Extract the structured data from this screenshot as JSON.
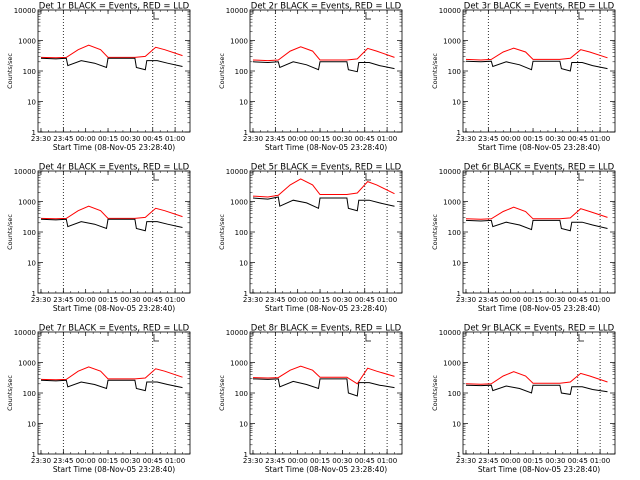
{
  "chart_data": [
    {
      "type": "line",
      "title": "Det 1r BLACK = Events, RED = LLD",
      "xlabel": "Start Time (08-Nov-05 23:28:40)",
      "ylabel": "Counts/sec",
      "x_ticks": [
        "23:30",
        "23:45",
        "00:00",
        "00:15",
        "00:30",
        "00:45",
        "01:00"
      ],
      "x_dotted_lines": [
        "23:45",
        "00:45",
        "01:00"
      ],
      "y_scale": "log",
      "ylim": [
        1,
        10000
      ],
      "y_ticks": [
        "1",
        "10",
        "100",
        "1000",
        "10000"
      ],
      "series": [
        {
          "color": "#ff0000",
          "x": [
            "23:30",
            "23:40",
            "23:47",
            "23:55",
            "00:02",
            "00:10",
            "00:15",
            "00:23",
            "00:33",
            "00:40",
            "00:47",
            "00:53",
            "01:05"
          ],
          "values": [
            280,
            270,
            280,
            500,
            700,
            500,
            280,
            280,
            280,
            300,
            600,
            500,
            320
          ]
        },
        {
          "color": "#000000",
          "x": [
            "23:30",
            "23:40",
            "23:47",
            "23:48",
            "23:57",
            "00:06",
            "00:14",
            "00:15",
            "00:33",
            "00:34",
            "00:40",
            "00:41",
            "00:48",
            "00:55",
            "01:05"
          ],
          "values": [
            260,
            250,
            260,
            150,
            220,
            180,
            130,
            260,
            260,
            130,
            110,
            220,
            220,
            180,
            140
          ]
        }
      ]
    },
    {
      "type": "line",
      "title": "Det 2r BLACK = Events, RED = LLD",
      "xlabel": "Start Time (08-Nov-05 23:28:40)",
      "ylabel": "Counts/sec",
      "x_ticks": [
        "23:30",
        "23:45",
        "00:00",
        "00:15",
        "00:30",
        "00:45",
        "01:00"
      ],
      "x_dotted_lines": [
        "23:45",
        "00:45",
        "01:00"
      ],
      "y_scale": "log",
      "ylim": [
        1,
        10000
      ],
      "y_ticks": [
        "1",
        "10",
        "100",
        "1000",
        "10000"
      ],
      "series": [
        {
          "color": "#ff0000",
          "x": [
            "23:30",
            "23:40",
            "23:47",
            "23:55",
            "00:02",
            "00:10",
            "00:15",
            "00:23",
            "00:33",
            "00:40",
            "00:47",
            "00:53",
            "01:05"
          ],
          "values": [
            230,
            220,
            230,
            450,
            620,
            450,
            230,
            230,
            230,
            250,
            550,
            450,
            280
          ]
        },
        {
          "color": "#000000",
          "x": [
            "23:30",
            "23:40",
            "23:47",
            "23:48",
            "23:57",
            "00:06",
            "00:14",
            "00:15",
            "00:33",
            "00:34",
            "00:40",
            "00:41",
            "00:48",
            "00:55",
            "01:05"
          ],
          "values": [
            200,
            190,
            200,
            130,
            200,
            160,
            110,
            200,
            200,
            110,
            95,
            190,
            190,
            150,
            120
          ]
        }
      ]
    },
    {
      "type": "line",
      "title": "Det 3r BLACK = Events, RED = LLD",
      "xlabel": "Start Time (08-Nov-05 23:28:40)",
      "ylabel": "Counts/sec",
      "x_ticks": [
        "23:30",
        "23:45",
        "00:00",
        "00:15",
        "00:30",
        "00:45",
        "01:00"
      ],
      "x_dotted_lines": [
        "23:45",
        "00:45",
        "01:00"
      ],
      "y_scale": "log",
      "ylim": [
        1,
        10000
      ],
      "y_ticks": [
        "1",
        "10",
        "100",
        "1000",
        "10000"
      ],
      "series": [
        {
          "color": "#ff0000",
          "x": [
            "23:30",
            "23:40",
            "23:47",
            "23:55",
            "00:02",
            "00:10",
            "00:15",
            "00:23",
            "00:33",
            "00:40",
            "00:47",
            "00:53",
            "01:05"
          ],
          "values": [
            240,
            230,
            240,
            420,
            560,
            420,
            240,
            240,
            240,
            260,
            500,
            420,
            270
          ]
        },
        {
          "color": "#000000",
          "x": [
            "23:30",
            "23:40",
            "23:47",
            "23:48",
            "23:57",
            "00:06",
            "00:14",
            "00:15",
            "00:33",
            "00:34",
            "00:40",
            "00:41",
            "00:48",
            "00:55",
            "01:05"
          ],
          "values": [
            210,
            200,
            210,
            140,
            200,
            160,
            110,
            210,
            210,
            120,
            100,
            190,
            190,
            150,
            120
          ]
        }
      ]
    },
    {
      "type": "line",
      "title": "Det 4r BLACK = Events, RED = LLD",
      "xlabel": "Start Time (08-Nov-05 23:28:40)",
      "ylabel": "Counts/sec",
      "x_ticks": [
        "23:30",
        "23:45",
        "00:00",
        "00:15",
        "00:30",
        "00:45",
        "01:00"
      ],
      "x_dotted_lines": [
        "23:45",
        "00:45",
        "01:00"
      ],
      "y_scale": "log",
      "ylim": [
        1,
        10000
      ],
      "y_ticks": [
        "1",
        "10",
        "100",
        "1000",
        "10000"
      ],
      "series": [
        {
          "color": "#ff0000",
          "x": [
            "23:30",
            "23:40",
            "23:47",
            "23:55",
            "00:02",
            "00:10",
            "00:15",
            "00:23",
            "00:33",
            "00:40",
            "00:47",
            "00:53",
            "01:05"
          ],
          "values": [
            280,
            270,
            280,
            500,
            700,
            500,
            280,
            280,
            280,
            300,
            600,
            500,
            320
          ]
        },
        {
          "color": "#000000",
          "x": [
            "23:30",
            "23:40",
            "23:47",
            "23:48",
            "23:57",
            "00:06",
            "00:14",
            "00:15",
            "00:33",
            "00:34",
            "00:40",
            "00:41",
            "00:48",
            "00:55",
            "01:05"
          ],
          "values": [
            260,
            250,
            260,
            150,
            220,
            180,
            130,
            260,
            260,
            130,
            110,
            220,
            220,
            180,
            140
          ]
        }
      ]
    },
    {
      "type": "line",
      "title": "Det 5r BLACK = Events, RED = LLD",
      "xlabel": "Start Time (08-Nov-05 23:28:40)",
      "ylabel": "Counts/sec",
      "x_ticks": [
        "23:30",
        "23:45",
        "00:00",
        "00:15",
        "00:30",
        "00:45",
        "01:00"
      ],
      "x_dotted_lines": [
        "23:45",
        "00:45",
        "01:00"
      ],
      "y_scale": "log",
      "ylim": [
        1,
        10000
      ],
      "y_ticks": [
        "1",
        "10",
        "100",
        "1000",
        "10000"
      ],
      "series": [
        {
          "color": "#ff0000",
          "x": [
            "23:30",
            "23:40",
            "23:47",
            "23:55",
            "00:02",
            "00:10",
            "00:15",
            "00:23",
            "00:33",
            "00:40",
            "00:47",
            "00:53",
            "01:05"
          ],
          "values": [
            1500,
            1400,
            1600,
            3500,
            5500,
            3500,
            1700,
            1700,
            1700,
            1900,
            4500,
            3500,
            1800
          ]
        },
        {
          "color": "#000000",
          "x": [
            "23:30",
            "23:40",
            "23:47",
            "23:48",
            "23:57",
            "00:06",
            "00:14",
            "00:15",
            "00:33",
            "00:34",
            "00:40",
            "00:41",
            "00:48",
            "00:55",
            "01:05"
          ],
          "values": [
            1300,
            1200,
            1400,
            700,
            1100,
            900,
            600,
            1300,
            1300,
            600,
            500,
            1100,
            1100,
            900,
            700
          ]
        }
      ]
    },
    {
      "type": "line",
      "title": "Det 6r BLACK = Events, RED = LLD",
      "xlabel": "Start Time (08-Nov-05 23:28:40)",
      "ylabel": "Counts/sec",
      "x_ticks": [
        "23:30",
        "23:45",
        "00:00",
        "00:15",
        "00:30",
        "00:45",
        "01:00"
      ],
      "x_dotted_lines": [
        "23:45",
        "00:45",
        "01:00"
      ],
      "y_scale": "log",
      "ylim": [
        1,
        10000
      ],
      "y_ticks": [
        "1",
        "10",
        "100",
        "1000",
        "10000"
      ],
      "series": [
        {
          "color": "#ff0000",
          "x": [
            "23:30",
            "23:40",
            "23:47",
            "23:55",
            "00:02",
            "00:10",
            "00:15",
            "00:23",
            "00:33",
            "00:40",
            "00:47",
            "00:53",
            "01:05"
          ],
          "values": [
            270,
            260,
            270,
            470,
            650,
            470,
            270,
            270,
            270,
            290,
            580,
            470,
            300
          ]
        },
        {
          "color": "#000000",
          "x": [
            "23:30",
            "23:40",
            "23:47",
            "23:48",
            "23:57",
            "00:06",
            "00:14",
            "00:15",
            "00:33",
            "00:34",
            "00:40",
            "00:41",
            "00:48",
            "00:55",
            "01:05"
          ],
          "values": [
            240,
            230,
            240,
            150,
            210,
            170,
            120,
            240,
            240,
            130,
            110,
            210,
            210,
            170,
            130
          ]
        }
      ]
    },
    {
      "type": "line",
      "title": "Det 7r BLACK = Events, RED = LLD",
      "xlabel": "Start Time (08-Nov-05 23:28:40)",
      "ylabel": "Counts/sec",
      "x_ticks": [
        "23:30",
        "23:45",
        "00:00",
        "00:15",
        "00:30",
        "00:45",
        "01:00"
      ],
      "x_dotted_lines": [
        "23:45",
        "00:45",
        "01:00"
      ],
      "y_scale": "log",
      "ylim": [
        1,
        10000
      ],
      "y_ticks": [
        "1",
        "10",
        "100",
        "1000",
        "10000"
      ],
      "series": [
        {
          "color": "#ff0000",
          "x": [
            "23:30",
            "23:40",
            "23:47",
            "23:55",
            "00:02",
            "00:10",
            "00:15",
            "00:23",
            "00:33",
            "00:40",
            "00:47",
            "00:53",
            "01:05"
          ],
          "values": [
            280,
            270,
            280,
            520,
            720,
            520,
            290,
            290,
            290,
            310,
            620,
            520,
            330
          ]
        },
        {
          "color": "#000000",
          "x": [
            "23:30",
            "23:40",
            "23:47",
            "23:48",
            "23:57",
            "00:06",
            "00:14",
            "00:15",
            "00:33",
            "00:34",
            "00:40",
            "00:41",
            "00:48",
            "00:55",
            "01:05"
          ],
          "values": [
            260,
            250,
            260,
            160,
            230,
            190,
            140,
            260,
            260,
            140,
            120,
            230,
            230,
            190,
            150
          ]
        }
      ]
    },
    {
      "type": "line",
      "title": "Det 8r BLACK = Events, RED = LLD",
      "xlabel": "Start Time (08-Nov-05 23:28:40)",
      "ylabel": "Counts/sec",
      "x_ticks": [
        "23:30",
        "23:45",
        "00:00",
        "00:15",
        "00:30",
        "00:45",
        "01:00"
      ],
      "x_dotted_lines": [
        "23:45",
        "00:45",
        "01:00"
      ],
      "y_scale": "log",
      "ylim": [
        1,
        10000
      ],
      "y_ticks": [
        "1",
        "10",
        "100",
        "1000",
        "10000"
      ],
      "series": [
        {
          "color": "#ff0000",
          "x": [
            "23:30",
            "23:40",
            "23:47",
            "23:55",
            "00:02",
            "00:10",
            "00:15",
            "00:23",
            "00:33",
            "00:40",
            "00:47",
            "00:53",
            "01:05"
          ],
          "values": [
            320,
            310,
            320,
            560,
            760,
            560,
            330,
            330,
            330,
            200,
            650,
            520,
            350
          ]
        },
        {
          "color": "#000000",
          "x": [
            "23:30",
            "23:40",
            "23:47",
            "23:48",
            "23:57",
            "00:06",
            "00:14",
            "00:15",
            "00:33",
            "00:34",
            "00:40",
            "00:41",
            "00:48",
            "00:55",
            "01:05"
          ],
          "values": [
            290,
            280,
            290,
            160,
            240,
            190,
            140,
            290,
            290,
            100,
            80,
            220,
            220,
            180,
            150
          ]
        }
      ]
    },
    {
      "type": "line",
      "title": "Det 9r BLACK = Events, RED = LLD",
      "xlabel": "Start Time (08-Nov-05 23:28:40)",
      "ylabel": "Counts/sec",
      "x_ticks": [
        "23:30",
        "23:45",
        "00:00",
        "00:15",
        "00:30",
        "00:45",
        "01:00"
      ],
      "x_dotted_lines": [
        "23:45",
        "00:45",
        "01:00"
      ],
      "y_scale": "log",
      "ylim": [
        1,
        10000
      ],
      "y_ticks": [
        "1",
        "10",
        "100",
        "1000",
        "10000"
      ],
      "series": [
        {
          "color": "#ff0000",
          "x": [
            "23:30",
            "23:40",
            "23:47",
            "23:55",
            "00:02",
            "00:10",
            "00:15",
            "00:23",
            "00:33",
            "00:40",
            "00:47",
            "00:53",
            "01:05"
          ],
          "values": [
            200,
            195,
            200,
            360,
            500,
            360,
            210,
            210,
            210,
            230,
            440,
            360,
            230
          ]
        },
        {
          "color": "#000000",
          "x": [
            "23:30",
            "23:40",
            "23:47",
            "23:48",
            "23:57",
            "00:06",
            "00:14",
            "00:15",
            "00:33",
            "00:34",
            "00:40",
            "00:41",
            "00:48",
            "00:55",
            "01:05"
          ],
          "values": [
            180,
            175,
            180,
            120,
            170,
            140,
            100,
            180,
            180,
            100,
            90,
            160,
            160,
            130,
            110
          ]
        }
      ]
    }
  ]
}
